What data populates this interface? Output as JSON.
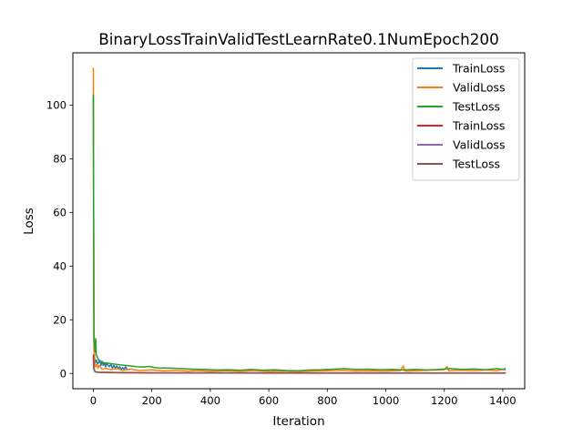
{
  "chart_data": {
    "type": "line",
    "title": "BinaryLossTrainValidTestLearnRate0.1NumEpoch200",
    "xlabel": "Iteration",
    "ylabel": "Loss",
    "xlim": [
      -70,
      1475
    ],
    "ylim": [
      -5.7,
      119.5
    ],
    "xticks": [
      0,
      200,
      400,
      600,
      800,
      1000,
      1200,
      1400
    ],
    "yticks": [
      0,
      20,
      40,
      60,
      80,
      100
    ],
    "grid": false,
    "legend_position": "top-right",
    "series": [
      {
        "name": "TrainLoss",
        "color": "#1f77b4",
        "points": [
          [
            0,
            103
          ],
          [
            2,
            12
          ],
          [
            4,
            6
          ],
          [
            6,
            4
          ],
          [
            10,
            5
          ],
          [
            14,
            3.5
          ],
          [
            18,
            4
          ],
          [
            22,
            5
          ],
          [
            26,
            3
          ],
          [
            30,
            4.5
          ],
          [
            34,
            3
          ],
          [
            38,
            4
          ],
          [
            42,
            2.5
          ],
          [
            46,
            4
          ],
          [
            50,
            3
          ],
          [
            55,
            2.5
          ],
          [
            60,
            3.5
          ],
          [
            65,
            2
          ],
          [
            70,
            3
          ],
          [
            75,
            2
          ],
          [
            80,
            2.8
          ],
          [
            85,
            1.8
          ],
          [
            90,
            2.5
          ],
          [
            95,
            1.5
          ],
          [
            100,
            2.2
          ],
          [
            105,
            1.5
          ],
          [
            110,
            2.5
          ],
          [
            116,
            1.2
          ]
        ]
      },
      {
        "name": "ValidLoss",
        "color": "#ff7f0e",
        "points": [
          [
            0,
            114
          ],
          [
            2,
            9
          ],
          [
            4,
            4
          ],
          [
            8,
            2.5
          ],
          [
            12,
            3.5
          ],
          [
            16,
            2
          ],
          [
            20,
            3
          ],
          [
            30,
            1.5
          ],
          [
            40,
            2
          ],
          [
            60,
            1.4
          ],
          [
            80,
            1.8
          ],
          [
            100,
            1.2
          ],
          [
            130,
            1.6
          ],
          [
            160,
            1.1
          ],
          [
            200,
            1.4
          ],
          [
            240,
            1.0
          ],
          [
            280,
            1.2
          ],
          [
            320,
            0.9
          ],
          [
            360,
            1.1
          ],
          [
            400,
            0.8
          ],
          [
            450,
            1.0
          ],
          [
            500,
            0.8
          ],
          [
            550,
            1.1
          ],
          [
            600,
            0.8
          ],
          [
            650,
            0.9
          ],
          [
            700,
            0.7
          ],
          [
            750,
            0.9
          ],
          [
            800,
            1.0
          ],
          [
            850,
            1.2
          ],
          [
            900,
            0.9
          ],
          [
            950,
            1.0
          ],
          [
            1000,
            0.9
          ],
          [
            1050,
            1.1
          ],
          [
            1060,
            2.8
          ],
          [
            1065,
            0.9
          ],
          [
            1100,
            1.0
          ],
          [
            1150,
            1.2
          ],
          [
            1200,
            1.4
          ],
          [
            1210,
            2.6
          ],
          [
            1215,
            1.0
          ],
          [
            1250,
            1.2
          ],
          [
            1300,
            1.1
          ],
          [
            1350,
            1.3
          ],
          [
            1380,
            1.0
          ],
          [
            1400,
            1.6
          ],
          [
            1410,
            1.2
          ]
        ]
      },
      {
        "name": "TestLoss",
        "color": "#2ca02c",
        "points": [
          [
            0,
            104
          ],
          [
            2,
            14
          ],
          [
            4,
            10
          ],
          [
            6,
            8
          ],
          [
            8,
            13
          ],
          [
            10,
            7
          ],
          [
            14,
            6
          ],
          [
            18,
            5
          ],
          [
            25,
            4.5
          ],
          [
            35,
            4
          ],
          [
            50,
            3.8
          ],
          [
            70,
            3.5
          ],
          [
            90,
            3.2
          ],
          [
            110,
            3.0
          ],
          [
            130,
            2.8
          ],
          [
            150,
            2.5
          ],
          [
            170,
            2.4
          ],
          [
            190,
            2.6
          ],
          [
            210,
            2.2
          ],
          [
            230,
            2.0
          ],
          [
            260,
            2.0
          ],
          [
            300,
            1.8
          ],
          [
            340,
            1.6
          ],
          [
            380,
            1.5
          ],
          [
            420,
            1.3
          ],
          [
            460,
            1.4
          ],
          [
            500,
            1.2
          ],
          [
            540,
            1.5
          ],
          [
            580,
            1.2
          ],
          [
            620,
            1.4
          ],
          [
            660,
            1.1
          ],
          [
            700,
            1.0
          ],
          [
            740,
            1.3
          ],
          [
            780,
            1.4
          ],
          [
            820,
            1.6
          ],
          [
            860,
            1.8
          ],
          [
            900,
            1.5
          ],
          [
            940,
            1.6
          ],
          [
            980,
            1.4
          ],
          [
            1020,
            1.5
          ],
          [
            1060,
            1.3
          ],
          [
            1100,
            1.5
          ],
          [
            1140,
            1.3
          ],
          [
            1180,
            1.5
          ],
          [
            1220,
            1.8
          ],
          [
            1260,
            1.5
          ],
          [
            1300,
            1.7
          ],
          [
            1340,
            1.4
          ],
          [
            1380,
            1.8
          ],
          [
            1400,
            1.5
          ],
          [
            1410,
            1.9
          ]
        ]
      },
      {
        "name": "TrainLoss",
        "color": "#d62728",
        "points": [
          [
            0,
            7
          ],
          [
            2,
            2
          ],
          [
            5,
            0.8
          ],
          [
            10,
            0.5
          ],
          [
            20,
            0.4
          ],
          [
            50,
            0.3
          ],
          [
            100,
            0.25
          ],
          [
            200,
            0.2
          ],
          [
            400,
            0.15
          ],
          [
            600,
            0.12
          ],
          [
            800,
            0.12
          ],
          [
            1000,
            0.1
          ],
          [
            1200,
            0.1
          ],
          [
            1410,
            0.1
          ]
        ]
      },
      {
        "name": "ValidLoss",
        "color": "#9467bd",
        "points": [
          [
            0,
            5
          ],
          [
            2,
            1.5
          ],
          [
            5,
            0.7
          ],
          [
            10,
            0.5
          ],
          [
            20,
            0.4
          ],
          [
            50,
            0.35
          ],
          [
            100,
            0.3
          ],
          [
            200,
            0.25
          ],
          [
            400,
            0.2
          ],
          [
            600,
            0.2
          ],
          [
            800,
            0.18
          ],
          [
            1000,
            0.18
          ],
          [
            1200,
            0.16
          ],
          [
            1410,
            0.15
          ]
        ]
      },
      {
        "name": "TestLoss",
        "color": "#8c564b",
        "points": [
          [
            0,
            6
          ],
          [
            2,
            1.8
          ],
          [
            5,
            0.8
          ],
          [
            10,
            0.5
          ],
          [
            20,
            0.45
          ],
          [
            50,
            0.4
          ],
          [
            100,
            0.35
          ],
          [
            200,
            0.3
          ],
          [
            400,
            0.25
          ],
          [
            600,
            0.22
          ],
          [
            800,
            0.2
          ],
          [
            1000,
            0.2
          ],
          [
            1200,
            0.18
          ],
          [
            1410,
            0.18
          ]
        ]
      }
    ]
  }
}
